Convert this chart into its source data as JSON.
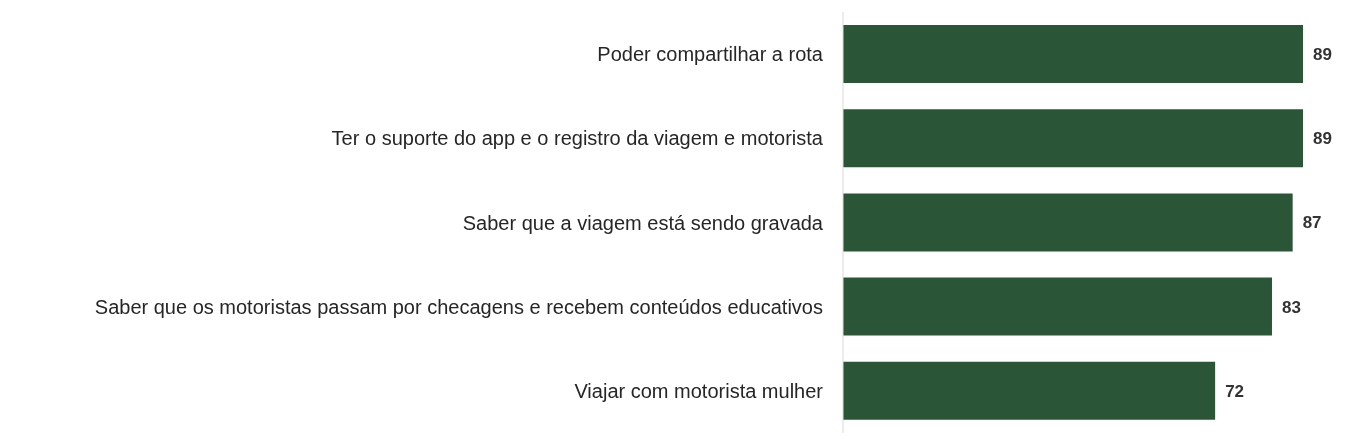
{
  "chart_data": {
    "type": "bar",
    "orientation": "horizontal",
    "categories": [
      "Poder compartilhar a rota",
      "Ter o suporte do app e o registro da viagem e motorista",
      "Saber que a viagem está sendo gravada",
      "Saber que os motoristas passam por checagens e recebem conteúdos educativos",
      "Viajar com motorista mulher"
    ],
    "values": [
      89,
      89,
      87,
      83,
      72
    ],
    "color": "#2a5637",
    "data_labels": true,
    "grid": false,
    "legend": false
  }
}
